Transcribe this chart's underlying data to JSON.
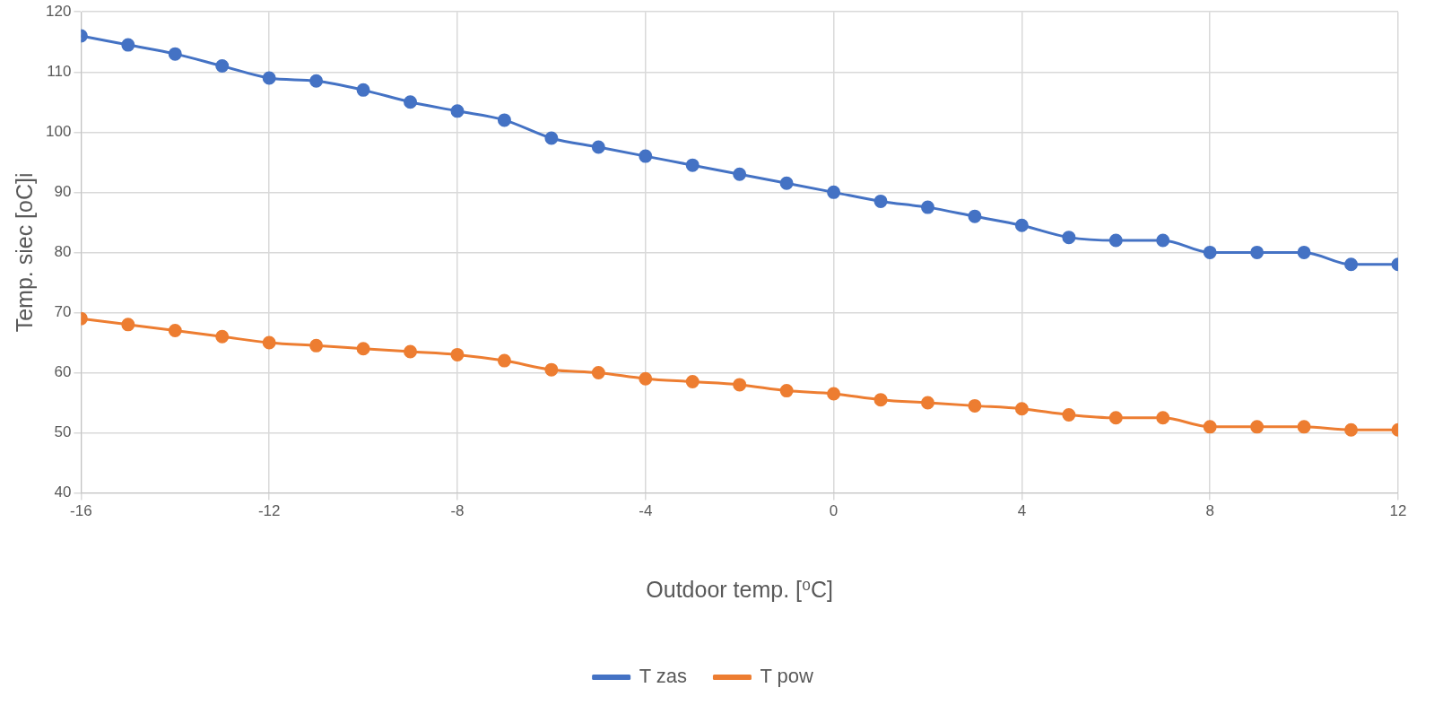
{
  "chart_data": {
    "type": "line",
    "xlabel": "Outdoor temp. [⁰C]",
    "ylabel": "Temp. siec [oC]i",
    "x": [
      -16,
      -15,
      -14,
      -13,
      -12,
      -11,
      -10,
      -9,
      -8,
      -7,
      -6,
      -5,
      -4,
      -3,
      -2,
      -1,
      0,
      1,
      2,
      3,
      4,
      5,
      6,
      7,
      8,
      9,
      10,
      11,
      12
    ],
    "series": [
      {
        "name": "T zas",
        "color": "#4472c4",
        "values": [
          116,
          114.5,
          113,
          111,
          109,
          108.5,
          107,
          105,
          103.5,
          102,
          99,
          97.5,
          96,
          94.5,
          93,
          91.5,
          90,
          88.5,
          87.5,
          86,
          84.5,
          82.5,
          82,
          82,
          80,
          80,
          80,
          78,
          78
        ]
      },
      {
        "name": "T pow",
        "color": "#ed7d31",
        "values": [
          69,
          68,
          67,
          66,
          65,
          64.5,
          64,
          63.5,
          63,
          62,
          60.5,
          60,
          59,
          58.5,
          58,
          57,
          56.5,
          55.5,
          55,
          54.5,
          54,
          53,
          52.5,
          52.5,
          51,
          51,
          51,
          50.5,
          50.5
        ]
      }
    ],
    "xlim": [
      -16,
      12
    ],
    "xticks": [
      -16,
      -12,
      -8,
      -4,
      0,
      4,
      8,
      12
    ],
    "ylim": [
      40,
      120
    ],
    "yticks": [
      40,
      50,
      60,
      70,
      80,
      90,
      100,
      110,
      120
    ],
    "grid": true,
    "legend": "bottom",
    "marker": "circle",
    "line_style": "solid"
  }
}
